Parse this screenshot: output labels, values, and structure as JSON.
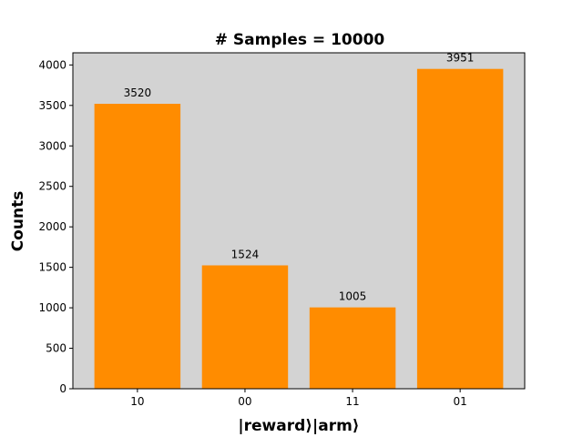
{
  "chart_data": {
    "type": "bar",
    "title": "# Samples = 10000",
    "xlabel": "|reward⟩|arm⟩",
    "ylabel": "Counts",
    "categories": [
      "10",
      "00",
      "11",
      "01"
    ],
    "values": [
      3520,
      1524,
      1005,
      3951
    ],
    "data_labels": [
      "3520",
      "1524",
      "1005",
      "3951"
    ],
    "ylim": [
      0,
      4150
    ],
    "yticks": [
      0,
      500,
      1000,
      1500,
      2000,
      2500,
      3000,
      3500,
      4000
    ],
    "grid": false,
    "legend": "none",
    "colors": {
      "bar": "#ff8c00",
      "plot_background": "#d3d3d3"
    }
  }
}
